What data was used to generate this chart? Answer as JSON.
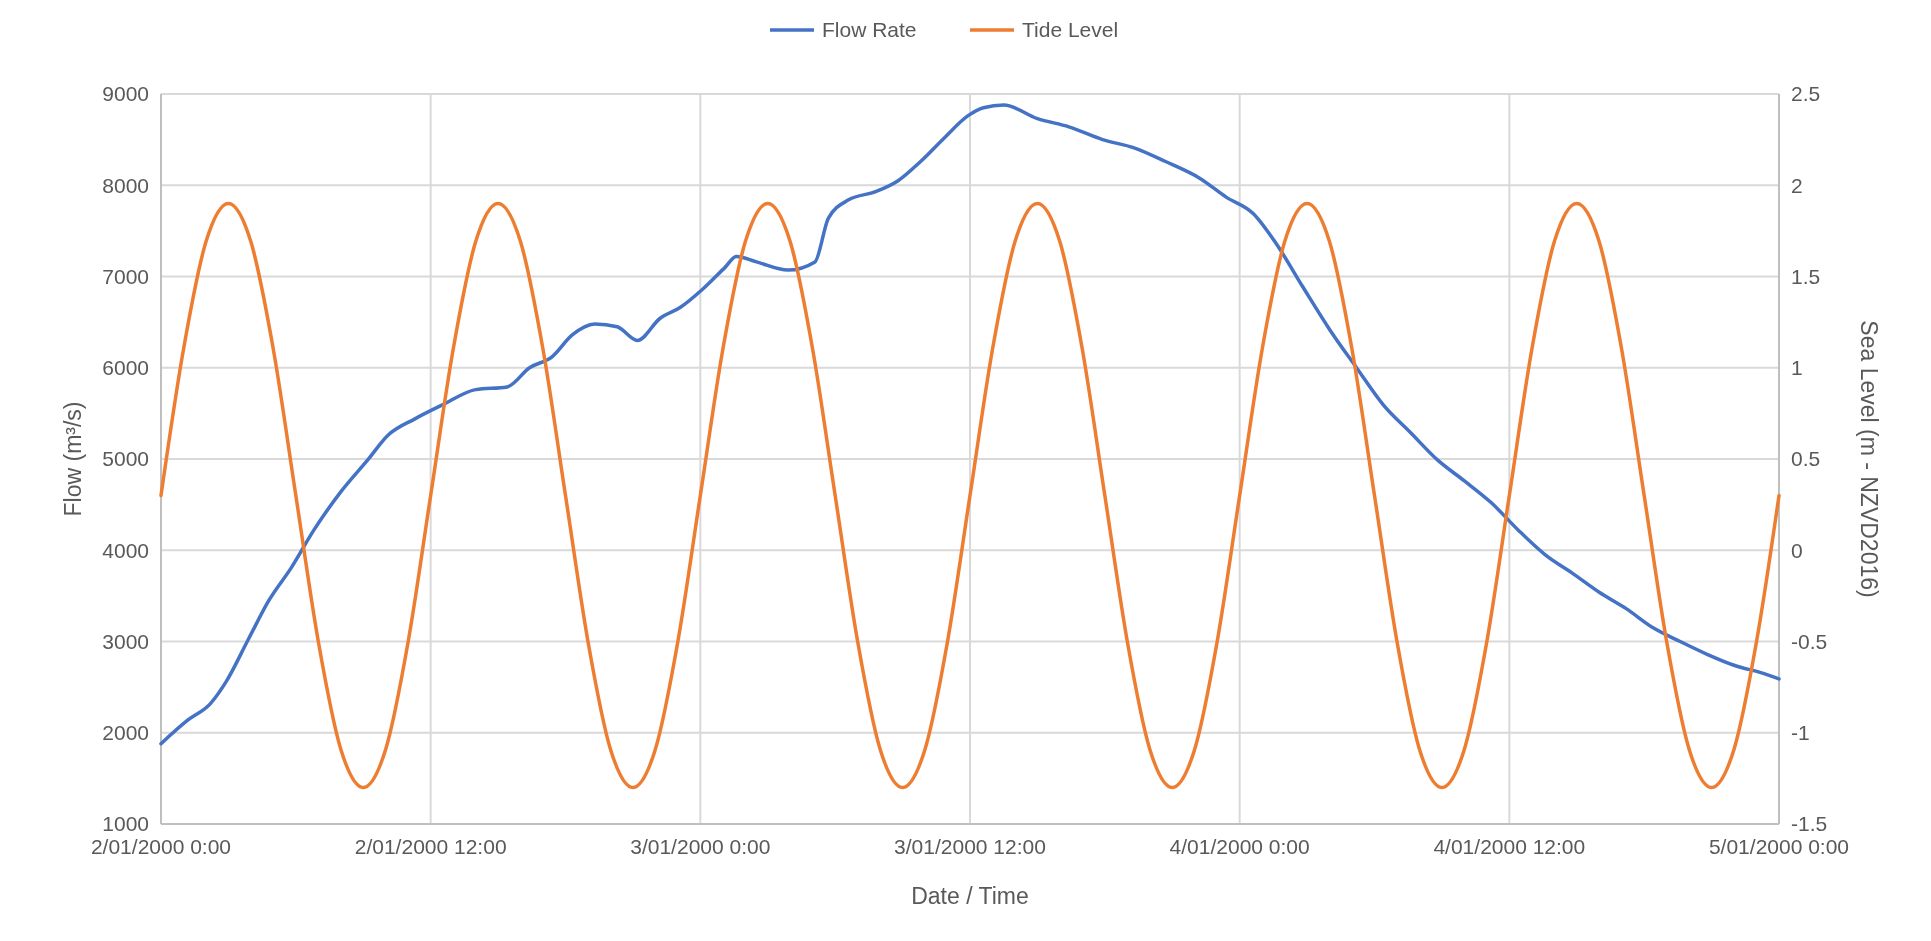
{
  "chart_data": {
    "type": "line",
    "xlabel": "Date / Time",
    "ylabel": "Flow (m³/s)",
    "y2label": "Sea Level (m - NZVD2016)",
    "xlim": [
      "2000-01-02T00:00",
      "2000-01-05T00:00"
    ],
    "xticks": [
      {
        "value": "2000-01-02T00:00",
        "label": "2/01/2000 0:00"
      },
      {
        "value": "2000-01-02T12:00",
        "label": "2/01/2000 12:00"
      },
      {
        "value": "2000-01-03T00:00",
        "label": "3/01/2000 0:00"
      },
      {
        "value": "2000-01-03T12:00",
        "label": "3/01/2000 12:00"
      },
      {
        "value": "2000-01-04T00:00",
        "label": "4/01/2000 0:00"
      },
      {
        "value": "2000-01-04T12:00",
        "label": "4/01/2000 12:00"
      },
      {
        "value": "2000-01-05T00:00",
        "label": "5/01/2000 0:00"
      }
    ],
    "ylim": [
      1000,
      9000
    ],
    "yticks": [
      1000,
      2000,
      3000,
      4000,
      5000,
      6000,
      7000,
      8000,
      9000
    ],
    "y2lim": [
      -1.5,
      2.5
    ],
    "y2ticks": [
      -1.5,
      -1,
      -0.5,
      0,
      0.5,
      1,
      1.5,
      2,
      2.5
    ],
    "grid": true,
    "legend": "top",
    "x": [
      "2000-01-02T00:00",
      "2000-01-02T01:00",
      "2000-01-02T02:00",
      "2000-01-02T03:00",
      "2000-01-02T04:00",
      "2000-01-02T05:00",
      "2000-01-02T06:00",
      "2000-01-02T07:00",
      "2000-01-02T08:00",
      "2000-01-02T09:00",
      "2000-01-02T10:00",
      "2000-01-02T11:00",
      "2000-01-02T12:00",
      "2000-01-02T13:00",
      "2000-01-02T14:00",
      "2000-01-02T15:00",
      "2000-01-02T16:00",
      "2000-01-02T17:00",
      "2000-01-02T18:00",
      "2000-01-02T19:00",
      "2000-01-02T20:00",
      "2000-01-02T21:00",
      "2000-01-02T22:00",
      "2000-01-02T23:00",
      "2000-01-03T00:00",
      "2000-01-03T01:00",
      "2000-01-03T02:00",
      "2000-01-03T03:00",
      "2000-01-03T04:00",
      "2000-01-03T05:00",
      "2000-01-03T06:00",
      "2000-01-03T07:00",
      "2000-01-03T08:00",
      "2000-01-03T09:00",
      "2000-01-03T10:00",
      "2000-01-03T11:00",
      "2000-01-03T12:00",
      "2000-01-03T13:00",
      "2000-01-03T14:00",
      "2000-01-03T15:00",
      "2000-01-03T16:00",
      "2000-01-03T17:00",
      "2000-01-03T18:00",
      "2000-01-03T19:00",
      "2000-01-03T20:00",
      "2000-01-03T21:00",
      "2000-01-03T22:00",
      "2000-01-03T23:00",
      "2000-01-04T00:00",
      "2000-01-04T01:00",
      "2000-01-04T02:00",
      "2000-01-04T03:00",
      "2000-01-04T04:00",
      "2000-01-04T05:00",
      "2000-01-04T06:00",
      "2000-01-04T07:00",
      "2000-01-04T08:00",
      "2000-01-04T09:00",
      "2000-01-04T10:00",
      "2000-01-04T11:00",
      "2000-01-04T12:00",
      "2000-01-04T13:00",
      "2000-01-04T14:00",
      "2000-01-04T15:00",
      "2000-01-04T16:00",
      "2000-01-04T17:00",
      "2000-01-04T18:00",
      "2000-01-04T19:00",
      "2000-01-04T20:00",
      "2000-01-04T21:00",
      "2000-01-04T22:00",
      "2000-01-04T23:00",
      "2000-01-05T00:00"
    ],
    "series": [
      {
        "name": "Flow Rate",
        "color": "#4472c4",
        "x": [
          "2000-01-02T00:00",
          "2000-01-02T01:12",
          "2000-01-02T02:12",
          "2000-01-02T02:54",
          "2000-01-02T03:54",
          "2000-01-02T04:48",
          "2000-01-02T05:48",
          "2000-01-02T06:48",
          "2000-01-02T08:00",
          "2000-01-02T09:12",
          "2000-01-02T10:06",
          "2000-01-02T11:18",
          "2000-01-02T12:30",
          "2000-01-02T14:00",
          "2000-01-02T15:24",
          "2000-01-02T16:24",
          "2000-01-02T17:24",
          "2000-01-02T18:18",
          "2000-01-02T19:18",
          "2000-01-02T20:18",
          "2000-01-02T21:12",
          "2000-01-02T22:12",
          "2000-01-02T23:06",
          "2000-01-03T00:06",
          "2000-01-03T01:06",
          "2000-01-03T01:36",
          "2000-01-03T02:30",
          "2000-01-03T03:54",
          "2000-01-03T05:06",
          "2000-01-03T05:42",
          "2000-01-03T06:36",
          "2000-01-03T07:48",
          "2000-01-03T08:48",
          "2000-01-03T09:48",
          "2000-01-03T10:54",
          "2000-01-03T11:54",
          "2000-01-03T12:36",
          "2000-01-03T13:30",
          "2000-01-03T15:00",
          "2000-01-03T16:24",
          "2000-01-03T17:54",
          "2000-01-03T19:18",
          "2000-01-03T20:42",
          "2000-01-03T22:12",
          "2000-01-03T23:24",
          "2000-01-04T00:36",
          "2000-01-04T01:36",
          "2000-01-04T02:48",
          "2000-01-04T04:00",
          "2000-01-04T05:12",
          "2000-01-04T06:24",
          "2000-01-04T07:36",
          "2000-01-04T08:48",
          "2000-01-04T10:00",
          "2000-01-04T11:12",
          "2000-01-04T12:24",
          "2000-01-04T13:36",
          "2000-01-04T14:48",
          "2000-01-04T16:00",
          "2000-01-04T17:12",
          "2000-01-04T18:24",
          "2000-01-04T19:36",
          "2000-01-04T20:48",
          "2000-01-04T22:00",
          "2000-01-04T23:18",
          "2000-01-05T00:00"
        ],
        "values": [
          1880,
          2140,
          2320,
          2560,
          3030,
          3450,
          3810,
          4220,
          4640,
          4990,
          5260,
          5440,
          5590,
          5760,
          5790,
          6000,
          6120,
          6360,
          6480,
          6450,
          6300,
          6540,
          6660,
          6860,
          7100,
          7220,
          7160,
          7070,
          7160,
          7640,
          7840,
          7930,
          8050,
          8260,
          8530,
          8760,
          8850,
          8880,
          8730,
          8640,
          8500,
          8410,
          8260,
          8080,
          7870,
          7690,
          7370,
          6890,
          6420,
          6000,
          5590,
          5290,
          4990,
          4760,
          4520,
          4220,
          3950,
          3750,
          3540,
          3360,
          3150,
          3000,
          2860,
          2740,
          2650,
          2590
        ]
      },
      {
        "name": "Tide Level",
        "color": "#ed7d31",
        "axis": "y2",
        "values": [
          0.3,
          1.1,
          1.69,
          1.9,
          1.69,
          1.1,
          0.3,
          -0.5,
          -1.09,
          -1.3,
          -1.09,
          -0.5,
          0.3,
          1.1,
          1.69,
          1.9,
          1.69,
          1.1,
          0.3,
          -0.5,
          -1.09,
          -1.3,
          -1.09,
          -0.5,
          0.3,
          1.1,
          1.69,
          1.9,
          1.69,
          1.1,
          0.3,
          -0.5,
          -1.09,
          -1.3,
          -1.09,
          -0.5,
          0.3,
          1.1,
          1.69,
          1.9,
          1.69,
          1.1,
          0.3,
          -0.5,
          -1.09,
          -1.3,
          -1.09,
          -0.5,
          0.3,
          1.1,
          1.69,
          1.9,
          1.69,
          1.1,
          0.3,
          -0.5,
          -1.09,
          -1.3,
          -1.09,
          -0.5,
          0.3,
          1.1,
          1.69,
          1.9,
          1.69,
          1.1,
          0.3,
          -0.5,
          -1.09,
          -1.3,
          -1.09,
          -0.5,
          0.3
        ]
      }
    ]
  }
}
